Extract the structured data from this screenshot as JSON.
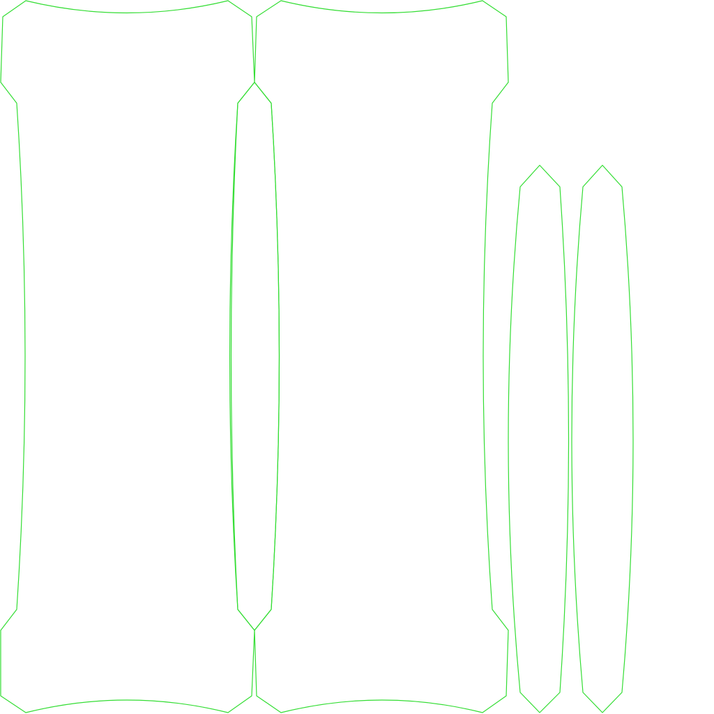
{
  "diagram": {
    "background_color": "#ffffff",
    "stroke_color": "#33dd33",
    "shapes": [
      {
        "id": "panel-left",
        "kind": "wide-panel"
      },
      {
        "id": "panel-middle",
        "kind": "wide-panel"
      },
      {
        "id": "sliver-left",
        "kind": "narrow-sliver"
      },
      {
        "id": "sliver-right",
        "kind": "narrow-sliver"
      },
      {
        "id": "sliver-inner-left",
        "kind": "tall-sliver"
      }
    ]
  }
}
